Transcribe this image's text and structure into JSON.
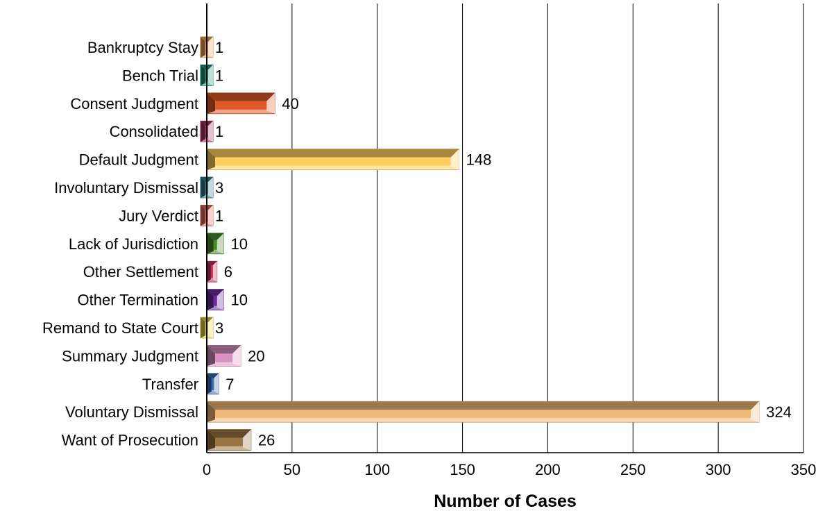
{
  "chart_data": {
    "type": "bar",
    "orientation": "horizontal",
    "title": "",
    "xlabel": "Number of Cases",
    "ylabel": "",
    "xlim": [
      0,
      350
    ],
    "xticks": [
      0,
      50,
      100,
      150,
      200,
      250,
      300,
      350
    ],
    "grid": "vertical",
    "legend": "none",
    "categories": [
      "Bankruptcy Stay",
      "Bench Trial",
      "Consent Judgment",
      "Consolidated",
      "Default Judgment",
      "Involuntary Dismissal",
      "Jury Verdict",
      "Lack of Jurisdiction",
      "Other Settlement",
      "Other Termination",
      "Remand to State Court",
      "Summary Judgment",
      "Transfer",
      "Voluntary Dismissal",
      "Want of Prosecution"
    ],
    "values": [
      1,
      1,
      40,
      1,
      148,
      3,
      1,
      10,
      6,
      10,
      3,
      20,
      7,
      324,
      26
    ],
    "colors": [
      "#F0A050",
      "#1A9A78",
      "#E05A28",
      "#B0306A",
      "#FFD060",
      "#2A7F8F",
      "#E86A5A",
      "#4A8A2A",
      "#C8305A",
      "#6A2AA0",
      "#E6D040",
      "#D890C0",
      "#3A6AB0",
      "#F0B878",
      "#9A7440"
    ]
  }
}
